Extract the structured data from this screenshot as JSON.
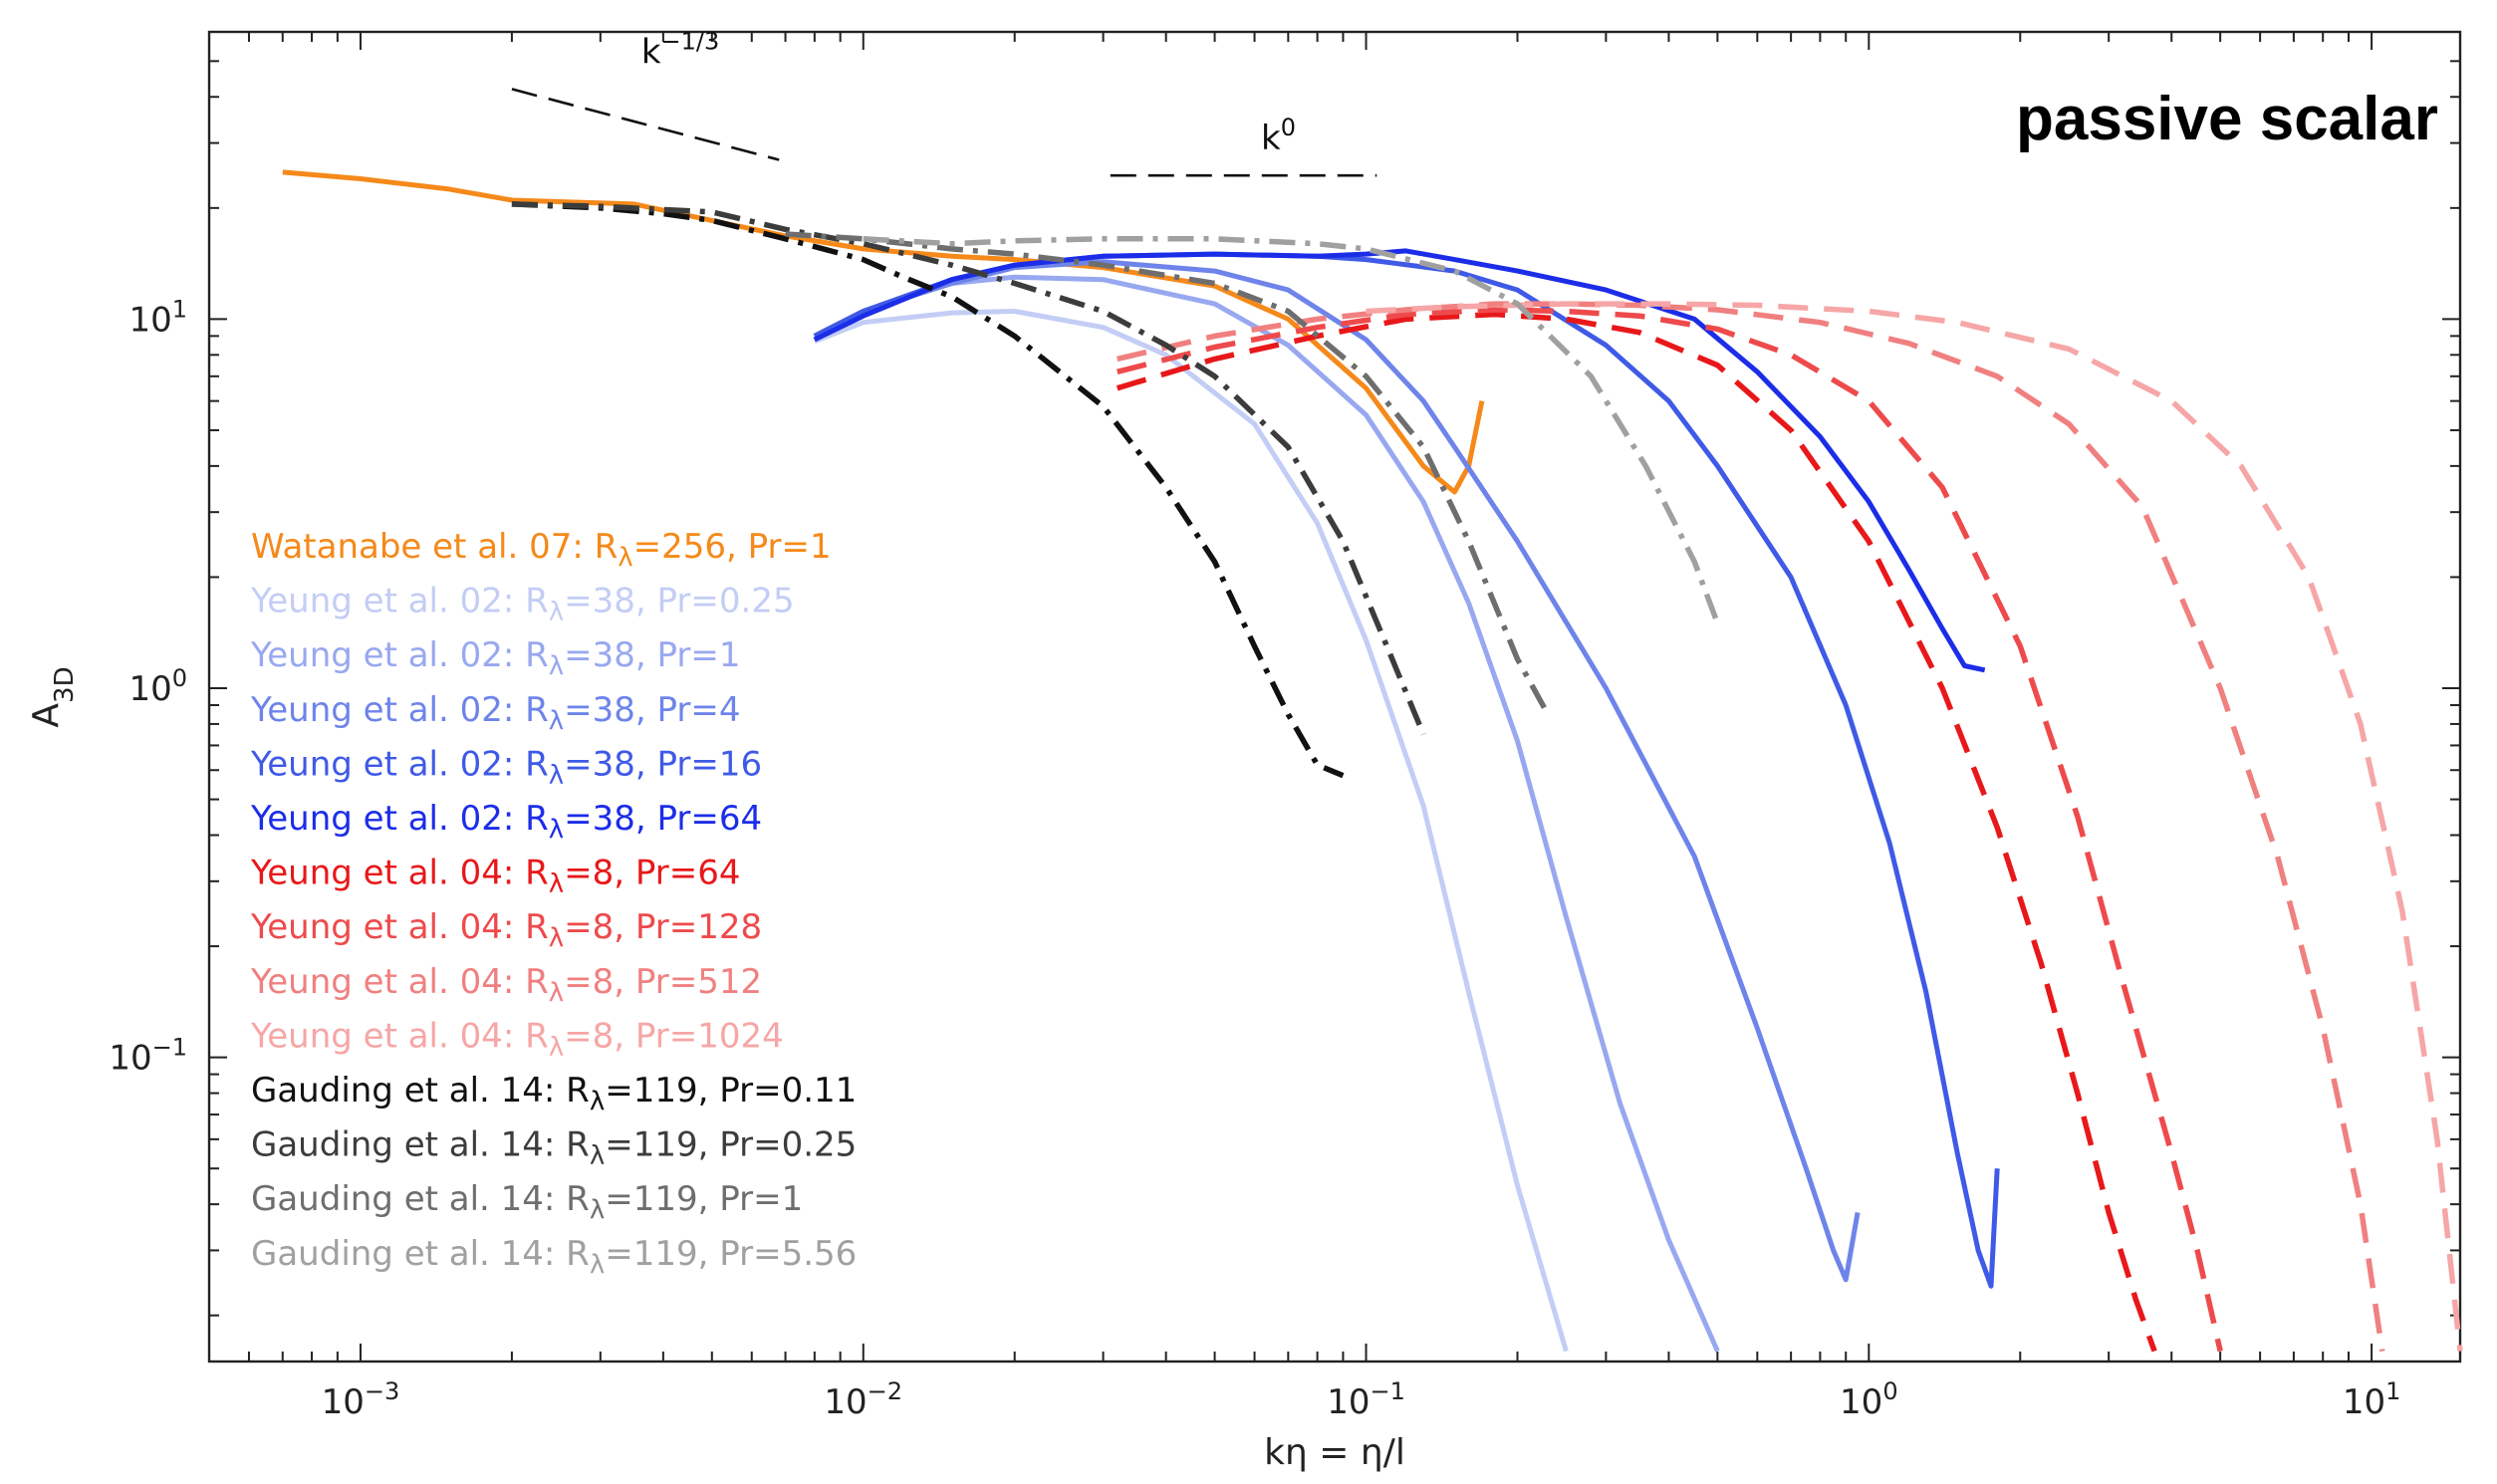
{
  "chart_data": {
    "type": "line",
    "title": "passive scalar",
    "xlabel": "kη = η/l",
    "ylabel": "A_3D",
    "xscale": "log",
    "yscale": "log",
    "xlim": [
      0.0005,
      15
    ],
    "ylim": [
      0.015,
      60
    ],
    "x_ticks": [
      {
        "value": 0.001,
        "mantissa": "10",
        "exp": "−3"
      },
      {
        "value": 0.01,
        "mantissa": "10",
        "exp": "−2"
      },
      {
        "value": 0.1,
        "mantissa": "10",
        "exp": "−1"
      },
      {
        "value": 1,
        "mantissa": "10",
        "exp": "0"
      },
      {
        "value": 10,
        "mantissa": "10",
        "exp": "1"
      }
    ],
    "y_ticks": [
      {
        "value": 0.1,
        "mantissa": "10",
        "exp": "−1"
      },
      {
        "value": 1,
        "mantissa": "10",
        "exp": "0"
      },
      {
        "value": 10,
        "mantissa": "10",
        "exp": "1"
      }
    ],
    "grid": false,
    "legend_position": "left-middle",
    "reference_lines": [
      {
        "label": "k",
        "exp": "−1/3",
        "x": [
          0.002,
          0.0068
        ],
        "y": [
          42,
          27
        ]
      },
      {
        "label": "k",
        "exp": "0",
        "x": [
          0.031,
          0.105
        ],
        "y": [
          24.5,
          24.5
        ]
      }
    ],
    "series": [
      {
        "name": "Watanabe et al. 07: R",
        "sub": "λ",
        "tail": "=256, Pr=1",
        "color": "#f5891a",
        "dash": "solid",
        "x": [
          0.0007,
          0.001,
          0.0015,
          0.002,
          0.0035,
          0.005,
          0.007,
          0.01,
          0.015,
          0.02,
          0.03,
          0.05,
          0.07,
          0.1,
          0.13,
          0.15,
          0.16,
          0.17
        ],
        "y": [
          25,
          24,
          22.5,
          21,
          20.5,
          18.5,
          16.8,
          15.5,
          14.8,
          14.5,
          13.8,
          12.3,
          10,
          6.5,
          4,
          3.4,
          4,
          6
        ]
      },
      {
        "name": "Yeung et al. 02: R",
        "sub": "λ",
        "tail": "=38, Pr=0.25",
        "color": "#c3cdf5",
        "dash": "solid",
        "x": [
          0.008,
          0.01,
          0.015,
          0.02,
          0.03,
          0.04,
          0.06,
          0.08,
          0.1,
          0.13,
          0.16,
          0.2,
          0.25
        ],
        "y": [
          8.7,
          9.8,
          10.4,
          10.5,
          9.5,
          8,
          5.2,
          2.8,
          1.35,
          0.48,
          0.15,
          0.045,
          0.016
        ]
      },
      {
        "name": "Yeung et al. 02: R",
        "sub": "λ",
        "tail": "=38, Pr=1",
        "color": "#98a8f0",
        "dash": "solid",
        "x": [
          0.008,
          0.01,
          0.015,
          0.02,
          0.03,
          0.05,
          0.07,
          0.1,
          0.13,
          0.16,
          0.2,
          0.25,
          0.32,
          0.4,
          0.5
        ],
        "y": [
          8.8,
          10.5,
          12.5,
          13,
          12.8,
          11,
          8.5,
          5.5,
          3.2,
          1.7,
          0.72,
          0.24,
          0.075,
          0.032,
          0.016
        ]
      },
      {
        "name": "Yeung et al. 02: R",
        "sub": "λ",
        "tail": "=38, Pr=4",
        "color": "#6e84ea",
        "dash": "solid",
        "x": [
          0.008,
          0.01,
          0.015,
          0.02,
          0.03,
          0.05,
          0.07,
          0.1,
          0.13,
          0.15,
          0.2,
          0.3,
          0.45,
          0.6,
          0.75,
          0.85,
          0.9,
          0.95
        ],
        "y": [
          9,
          10.5,
          12.5,
          13.8,
          14.3,
          13.5,
          12,
          8.8,
          6,
          4.5,
          2.5,
          1,
          0.35,
          0.12,
          0.05,
          0.03,
          0.025,
          0.038
        ]
      },
      {
        "name": "Yeung et al. 02: R",
        "sub": "λ",
        "tail": "=38, Pr=16",
        "color": "#3f5ae6",
        "dash": "solid",
        "x": [
          0.008,
          0.01,
          0.015,
          0.02,
          0.03,
          0.05,
          0.08,
          0.1,
          0.15,
          0.2,
          0.3,
          0.4,
          0.5,
          0.7,
          0.9,
          1.1,
          1.3,
          1.5,
          1.65,
          1.75,
          1.8
        ],
        "y": [
          9,
          10.5,
          12.8,
          14,
          14.8,
          15,
          14.8,
          14.5,
          13.5,
          12,
          8.5,
          6,
          4,
          2,
          0.9,
          0.38,
          0.15,
          0.055,
          0.03,
          0.024,
          0.05
        ]
      },
      {
        "name": "Yeung et al. 02: R",
        "sub": "λ",
        "tail": "=38, Pr=64",
        "color": "#1c2de8",
        "dash": "solid",
        "x": [
          0.008,
          0.01,
          0.015,
          0.02,
          0.03,
          0.05,
          0.08,
          0.1,
          0.12,
          0.15,
          0.2,
          0.3,
          0.45,
          0.6,
          0.8,
          1,
          1.2,
          1.4,
          1.55,
          1.7
        ],
        "y": [
          8.8,
          10.2,
          12.8,
          14,
          14.8,
          15,
          14.8,
          15,
          15.3,
          14.5,
          13.5,
          12,
          10,
          7.2,
          4.8,
          3.2,
          2.1,
          1.45,
          1.15,
          1.12
        ]
      },
      {
        "name": "Yeung et al. 04: R",
        "sub": "λ",
        "tail": "=8, Pr=64",
        "color": "#e8181a",
        "dash": "dash",
        "x": [
          0.032,
          0.05,
          0.08,
          0.12,
          0.18,
          0.25,
          0.35,
          0.5,
          0.7,
          1,
          1.4,
          1.8,
          2.2,
          2.6,
          3,
          3.4,
          3.7
        ],
        "y": [
          6.5,
          7.8,
          9,
          10,
          10.3,
          10,
          9.2,
          7.5,
          5,
          2.5,
          1,
          0.42,
          0.18,
          0.08,
          0.038,
          0.022,
          0.016
        ]
      },
      {
        "name": "Yeung et al. 04: R",
        "sub": "λ",
        "tail": "=8, Pr=128",
        "color": "#ee4a4c",
        "dash": "dash",
        "x": [
          0.032,
          0.05,
          0.08,
          0.12,
          0.18,
          0.25,
          0.35,
          0.5,
          0.7,
          1,
          1.4,
          2,
          2.6,
          3.2,
          4,
          4.5,
          5
        ],
        "y": [
          7.2,
          8.4,
          9.5,
          10.3,
          10.6,
          10.5,
          10.2,
          9.4,
          8,
          6,
          3.5,
          1.3,
          0.45,
          0.16,
          0.055,
          0.03,
          0.016
        ]
      },
      {
        "name": "Yeung et al. 04: R",
        "sub": "λ",
        "tail": "=8, Pr=512",
        "color": "#f08080",
        "dash": "dash",
        "x": [
          0.032,
          0.05,
          0.08,
          0.12,
          0.18,
          0.25,
          0.35,
          0.5,
          0.8,
          1.2,
          1.8,
          2.5,
          3.5,
          5,
          6.5,
          8,
          9.5,
          10.5
        ],
        "y": [
          7.8,
          9,
          10,
          10.6,
          11,
          11,
          10.9,
          10.6,
          9.8,
          8.6,
          7,
          5.2,
          3.1,
          1,
          0.35,
          0.12,
          0.04,
          0.016
        ]
      },
      {
        "name": "Yeung et al. 04: R",
        "sub": "λ",
        "tail": "=8, Pr=1024",
        "color": "#f6a6a6",
        "dash": "dash",
        "x": [
          0.1,
          0.15,
          0.25,
          0.4,
          0.6,
          1,
          1.5,
          2.5,
          4,
          5.5,
          7.5,
          9.5,
          11.5,
          13.5,
          15
        ],
        "y": [
          10.5,
          10.8,
          11,
          11,
          10.9,
          10.5,
          9.8,
          8.3,
          6,
          4,
          2,
          0.8,
          0.25,
          0.06,
          0.016
        ]
      },
      {
        "name": "Gauding et al. 14: R",
        "sub": "λ",
        "tail": "=119, Pr=0.11",
        "color": "#111111",
        "dash": "dashdot",
        "x": [
          0.002,
          0.003,
          0.004,
          0.005,
          0.007,
          0.01,
          0.012,
          0.015,
          0.02,
          0.03,
          0.04,
          0.05,
          0.06,
          0.07,
          0.08,
          0.09
        ],
        "y": [
          20.5,
          20,
          19.3,
          18.5,
          16.5,
          14.5,
          13,
          11.5,
          9,
          5.8,
          3.5,
          2.2,
          1.3,
          0.85,
          0.62,
          0.58
        ]
      },
      {
        "name": "Gauding et al. 14: R",
        "sub": "λ",
        "tail": "=119, Pr=0.25",
        "color": "#3c3c3c",
        "dash": "dashdot",
        "x": [
          0.002,
          0.003,
          0.005,
          0.007,
          0.01,
          0.015,
          0.02,
          0.03,
          0.04,
          0.05,
          0.07,
          0.09,
          0.11,
          0.13
        ],
        "y": [
          20.5,
          20.2,
          19.5,
          17.5,
          16,
          14,
          12.5,
          10.5,
          8.5,
          7,
          4.5,
          2.5,
          1.3,
          0.75
        ]
      },
      {
        "name": "Gauding et al. 14: R",
        "sub": "λ",
        "tail": "=119, Pr=1",
        "color": "#6e6e6e",
        "dash": "dashdot",
        "x": [
          0.007,
          0.01,
          0.015,
          0.02,
          0.03,
          0.05,
          0.07,
          0.1,
          0.13,
          0.16,
          0.2,
          0.23
        ],
        "y": [
          17,
          16.5,
          15.5,
          15,
          14,
          12.5,
          10.5,
          7,
          4.5,
          2.5,
          1.2,
          0.85
        ]
      },
      {
        "name": "Gauding et al. 14: R",
        "sub": "λ",
        "tail": "=119, Pr=5.56",
        "color": "#a0a0a0",
        "dash": "dashdot",
        "x": [
          0.01,
          0.015,
          0.02,
          0.03,
          0.05,
          0.08,
          0.1,
          0.15,
          0.2,
          0.28,
          0.36,
          0.45,
          0.5
        ],
        "y": [
          16.5,
          16,
          16.3,
          16.5,
          16.5,
          16,
          15.5,
          13.5,
          11,
          7,
          4,
          2.2,
          1.5
        ]
      }
    ]
  }
}
